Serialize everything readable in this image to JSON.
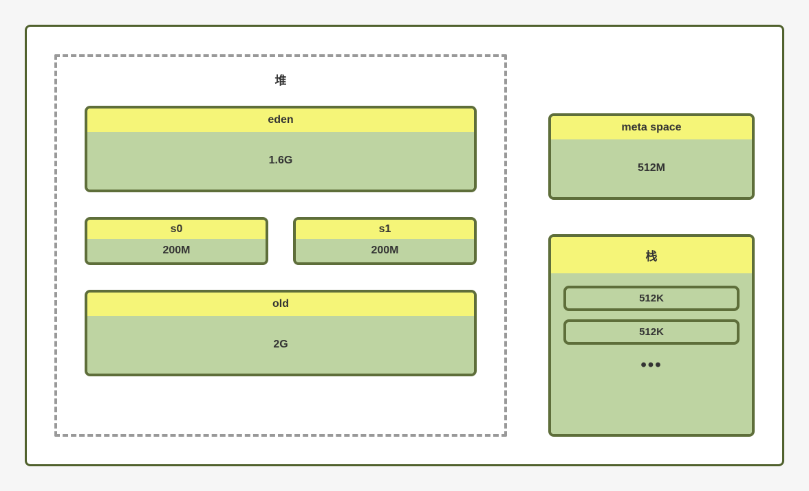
{
  "diagram": {
    "type": "infographic",
    "background_color": "#f6f6f6",
    "container_border_color": "#50612d",
    "container_bg": "#ffffff",
    "dashed_border_color": "#999999",
    "block_border_color": "#5e6e3a",
    "header_bg": "#f5f578",
    "body_bg": "#bed4a2",
    "text_color": "#333333",
    "border_width": 4,
    "border_radius": 8,
    "title_fontsize": 17,
    "label_fontsize": 16
  },
  "heap": {
    "title": "堆",
    "eden": {
      "label": "eden",
      "size": "1.6G"
    },
    "s0": {
      "label": "s0",
      "size": "200M"
    },
    "s1": {
      "label": "s1",
      "size": "200M"
    },
    "old": {
      "label": "old",
      "size": "2G"
    }
  },
  "metaspace": {
    "label": "meta space",
    "size": "512M"
  },
  "stack": {
    "label": "栈",
    "items": [
      "512K",
      "512K"
    ],
    "ellipsis": "•••"
  }
}
